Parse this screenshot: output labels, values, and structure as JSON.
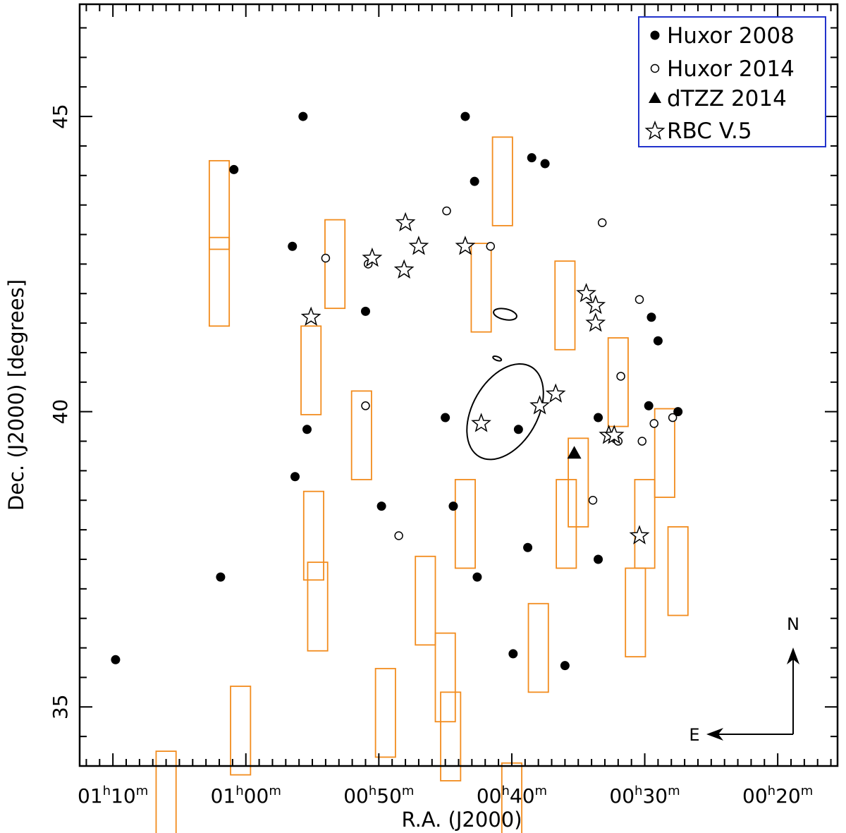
{
  "chart_data": {
    "type": "scatter",
    "xlabel": "R.A. (J2000)",
    "ylabel": "Dec. (J2000) [degrees]",
    "x_unit": "hours of right ascension (decreasing to the right)",
    "xlim": [
      72.5,
      15.5
    ],
    "ylim": [
      34.0,
      46.9
    ],
    "x_ticks": [
      {
        "value": 70,
        "h": "01",
        "m": "10"
      },
      {
        "value": 60,
        "h": "01",
        "m": "00"
      },
      {
        "value": 50,
        "h": "00",
        "m": "50"
      },
      {
        "value": 40,
        "h": "00",
        "m": "40"
      },
      {
        "value": 30,
        "h": "00",
        "m": "30"
      },
      {
        "value": 20,
        "h": "00",
        "m": "20"
      }
    ],
    "y_ticks": [
      {
        "value": 35,
        "label": "35"
      },
      {
        "value": 40,
        "label": "40"
      },
      {
        "value": 45,
        "label": "45"
      }
    ],
    "legend": {
      "placement": "top-right",
      "border_color": "#2233cc",
      "entries": [
        {
          "marker": "filled-circle",
          "label": "Huxor 2008"
        },
        {
          "marker": "open-circle",
          "label": "Huxor 2014"
        },
        {
          "marker": "filled-triangle",
          "label": "dTZZ 2014"
        },
        {
          "marker": "open-star",
          "label": "RBC V.5"
        }
      ]
    },
    "compass": {
      "north_label": "N",
      "east_label": "E"
    },
    "colors": {
      "fields": "#f28c1e",
      "markers": "#000000",
      "legend_border": "#2233cc"
    },
    "fields": [
      {
        "ra": 62.0,
        "dec": 43.5,
        "size": 1.5
      },
      {
        "ra": 62.0,
        "dec": 42.2,
        "size": 1.5
      },
      {
        "ra": 53.3,
        "dec": 42.5,
        "size": 1.5
      },
      {
        "ra": 55.1,
        "dec": 40.7,
        "size": 1.5
      },
      {
        "ra": 51.3,
        "dec": 39.6,
        "size": 1.5
      },
      {
        "ra": 40.7,
        "dec": 43.9,
        "size": 1.5
      },
      {
        "ra": 42.3,
        "dec": 42.1,
        "size": 1.5
      },
      {
        "ra": 36.0,
        "dec": 41.8,
        "size": 1.5
      },
      {
        "ra": 32.0,
        "dec": 40.5,
        "size": 1.5
      },
      {
        "ra": 28.5,
        "dec": 39.3,
        "size": 1.5
      },
      {
        "ra": 35.0,
        "dec": 38.8,
        "size": 1.5
      },
      {
        "ra": 30.0,
        "dec": 38.1,
        "size": 1.5
      },
      {
        "ra": 27.5,
        "dec": 37.3,
        "size": 1.5
      },
      {
        "ra": 30.7,
        "dec": 36.6,
        "size": 1.5
      },
      {
        "ra": 35.9,
        "dec": 38.1,
        "size": 1.5
      },
      {
        "ra": 43.5,
        "dec": 38.1,
        "size": 1.5
      },
      {
        "ra": 54.9,
        "dec": 37.9,
        "size": 1.5
      },
      {
        "ra": 54.6,
        "dec": 36.7,
        "size": 1.5
      },
      {
        "ra": 46.5,
        "dec": 36.8,
        "size": 1.5
      },
      {
        "ra": 45.0,
        "dec": 35.5,
        "size": 1.5
      },
      {
        "ra": 38.0,
        "dec": 36.0,
        "size": 1.5
      },
      {
        "ra": 49.5,
        "dec": 34.9,
        "size": 1.5
      },
      {
        "ra": 44.6,
        "dec": 34.5,
        "size": 1.5
      },
      {
        "ra": 40.0,
        "dec": 33.3,
        "size": 1.5
      },
      {
        "ra": 60.4,
        "dec": 34.6,
        "size": 1.5
      },
      {
        "ra": 66.0,
        "dec": 33.5,
        "size": 1.5
      }
    ],
    "ellipses": [
      {
        "ra": 40.5,
        "dec": 40.0,
        "rx": 3.9,
        "ry": 0.55,
        "angle": -60
      },
      {
        "ra": 40.5,
        "dec": 41.65,
        "rx": 0.4,
        "ry": 0.2,
        "angle": -78
      },
      {
        "ra": 41.1,
        "dec": 40.9,
        "rx": 0.14,
        "ry": 0.075,
        "angle": -70
      }
    ],
    "series": [
      {
        "name": "Huxor 2008",
        "marker": "filled-circle",
        "points": [
          {
            "ra": 55.7,
            "dec": 45.0
          },
          {
            "ra": 60.9,
            "dec": 44.1
          },
          {
            "ra": 56.5,
            "dec": 42.8
          },
          {
            "ra": 51.0,
            "dec": 41.7
          },
          {
            "ra": 43.5,
            "dec": 45.0
          },
          {
            "ra": 38.5,
            "dec": 44.3
          },
          {
            "ra": 37.5,
            "dec": 44.2
          },
          {
            "ra": 42.8,
            "dec": 43.9
          },
          {
            "ra": 29.5,
            "dec": 41.6
          },
          {
            "ra": 29.0,
            "dec": 41.2
          },
          {
            "ra": 29.7,
            "dec": 40.1
          },
          {
            "ra": 27.5,
            "dec": 40.0
          },
          {
            "ra": 33.5,
            "dec": 39.9
          },
          {
            "ra": 39.5,
            "dec": 39.7
          },
          {
            "ra": 45.0,
            "dec": 39.9
          },
          {
            "ra": 55.4,
            "dec": 39.7
          },
          {
            "ra": 56.3,
            "dec": 38.9
          },
          {
            "ra": 49.8,
            "dec": 38.4
          },
          {
            "ra": 44.4,
            "dec": 38.4
          },
          {
            "ra": 38.8,
            "dec": 37.7
          },
          {
            "ra": 33.5,
            "dec": 37.5
          },
          {
            "ra": 42.6,
            "dec": 37.2
          },
          {
            "ra": 61.9,
            "dec": 37.2
          },
          {
            "ra": 69.8,
            "dec": 35.8
          },
          {
            "ra": 39.9,
            "dec": 35.9
          },
          {
            "ra": 36.0,
            "dec": 35.7
          }
        ]
      },
      {
        "name": "Huxor 2014",
        "marker": "open-circle",
        "points": [
          {
            "ra": 44.9,
            "dec": 43.4
          },
          {
            "ra": 33.2,
            "dec": 43.2
          },
          {
            "ra": 41.6,
            "dec": 42.8
          },
          {
            "ra": 54.0,
            "dec": 42.6
          },
          {
            "ra": 50.8,
            "dec": 42.5
          },
          {
            "ra": 30.4,
            "dec": 41.9
          },
          {
            "ra": 31.8,
            "dec": 40.6
          },
          {
            "ra": 51.0,
            "dec": 40.1
          },
          {
            "ra": 29.3,
            "dec": 39.8
          },
          {
            "ra": 27.9,
            "dec": 39.9
          },
          {
            "ra": 32.0,
            "dec": 39.5
          },
          {
            "ra": 30.2,
            "dec": 39.5
          },
          {
            "ra": 33.9,
            "dec": 38.5
          },
          {
            "ra": 48.5,
            "dec": 37.9
          }
        ]
      },
      {
        "name": "dTZZ 2014",
        "marker": "filled-triangle",
        "points": [
          {
            "ra": 35.3,
            "dec": 39.3
          }
        ]
      },
      {
        "name": "RBC V.5",
        "marker": "open-star",
        "points": [
          {
            "ra": 48.0,
            "dec": 43.2
          },
          {
            "ra": 47.0,
            "dec": 42.8
          },
          {
            "ra": 43.5,
            "dec": 42.8
          },
          {
            "ra": 50.5,
            "dec": 42.6
          },
          {
            "ra": 48.1,
            "dec": 42.4
          },
          {
            "ra": 34.4,
            "dec": 42.0
          },
          {
            "ra": 33.7,
            "dec": 41.8
          },
          {
            "ra": 33.7,
            "dec": 41.5
          },
          {
            "ra": 55.1,
            "dec": 41.6
          },
          {
            "ra": 36.7,
            "dec": 40.3
          },
          {
            "ra": 37.9,
            "dec": 40.1
          },
          {
            "ra": 42.3,
            "dec": 39.8
          },
          {
            "ra": 32.7,
            "dec": 39.6
          },
          {
            "ra": 32.3,
            "dec": 39.6
          },
          {
            "ra": 30.4,
            "dec": 37.9
          }
        ]
      }
    ]
  }
}
